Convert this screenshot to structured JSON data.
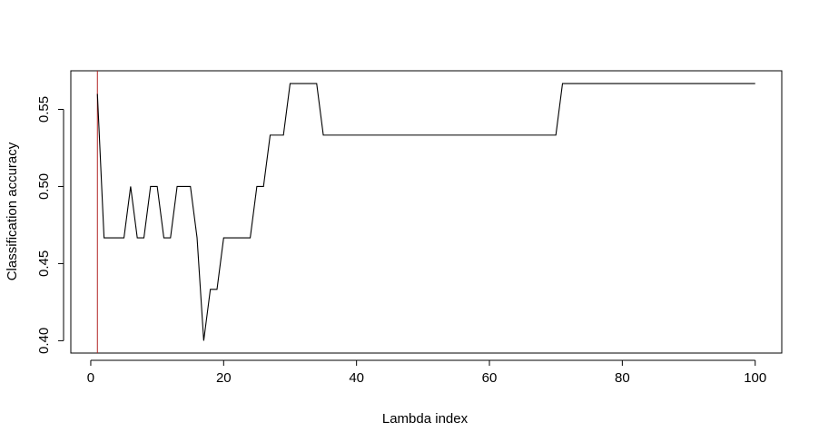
{
  "chart_data": {
    "type": "line",
    "title": "",
    "xlabel": "Lambda index",
    "ylabel": "Classification accuracy",
    "xlim": [
      -3,
      104
    ],
    "ylim": [
      0.392,
      0.575
    ],
    "x_ticks": [
      0,
      20,
      40,
      60,
      80,
      100
    ],
    "x_tick_labels": [
      "0",
      "20",
      "40",
      "60",
      "80",
      "100"
    ],
    "y_ticks": [
      0.4,
      0.45,
      0.5,
      0.55
    ],
    "y_tick_labels": [
      "0.40",
      "0.45",
      "0.50",
      "0.55"
    ],
    "grid": false,
    "legend": "none",
    "series": [
      {
        "color": "#000000",
        "x": [
          1,
          2,
          3,
          4,
          5,
          6,
          7,
          8,
          9,
          10,
          11,
          12,
          13,
          14,
          15,
          16,
          17,
          18,
          19,
          20,
          21,
          22,
          23,
          24,
          25,
          26,
          27,
          28,
          29,
          30,
          31,
          32,
          33,
          34,
          35,
          36,
          37,
          38,
          39,
          40,
          41,
          42,
          43,
          44,
          45,
          46,
          47,
          48,
          49,
          50,
          51,
          52,
          53,
          54,
          55,
          56,
          57,
          58,
          59,
          60,
          61,
          62,
          63,
          64,
          65,
          66,
          67,
          68,
          69,
          70,
          71,
          72,
          73,
          74,
          75,
          76,
          77,
          78,
          79,
          80,
          81,
          82,
          83,
          84,
          85,
          86,
          87,
          88,
          89,
          90,
          91,
          92,
          93,
          94,
          95,
          96,
          97,
          98,
          99,
          100
        ],
        "y": [
          0.56,
          0.4667,
          0.4667,
          0.4667,
          0.4667,
          0.5,
          0.4667,
          0.4667,
          0.5,
          0.5,
          0.4667,
          0.4667,
          0.5,
          0.5,
          0.5,
          0.4667,
          0.4,
          0.4333,
          0.4333,
          0.4667,
          0.4667,
          0.4667,
          0.4667,
          0.4667,
          0.5,
          0.5,
          0.5333,
          0.5333,
          0.5333,
          0.5667,
          0.5667,
          0.5667,
          0.5667,
          0.5667,
          0.5333,
          0.5333,
          0.5333,
          0.5333,
          0.5333,
          0.5333,
          0.5333,
          0.5333,
          0.5333,
          0.5333,
          0.5333,
          0.5333,
          0.5333,
          0.5333,
          0.5333,
          0.5333,
          0.5333,
          0.5333,
          0.5333,
          0.5333,
          0.5333,
          0.5333,
          0.5333,
          0.5333,
          0.5333,
          0.5333,
          0.5333,
          0.5333,
          0.5333,
          0.5333,
          0.5333,
          0.5333,
          0.5333,
          0.5333,
          0.5333,
          0.5333,
          0.5667,
          0.5667,
          0.5667,
          0.5667,
          0.5667,
          0.5667,
          0.5667,
          0.5667,
          0.5667,
          0.5667,
          0.5667,
          0.5667,
          0.5667,
          0.5667,
          0.5667,
          0.5667,
          0.5667,
          0.5667,
          0.5667,
          0.5667,
          0.5667,
          0.5667,
          0.5667,
          0.5667,
          0.5667,
          0.5667,
          0.5667,
          0.5667,
          0.5667,
          0.5667
        ]
      }
    ],
    "vertical_line": {
      "x": 1,
      "color": "#b22222"
    }
  }
}
